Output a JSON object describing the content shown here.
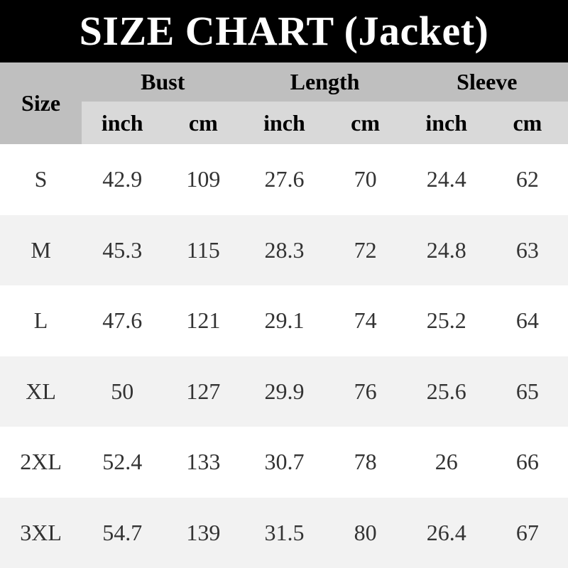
{
  "title": "SIZE CHART (Jacket)",
  "colors": {
    "title_bg": "#000000",
    "title_text": "#ffffff",
    "group_header_bg": "#bfbfbf",
    "unit_header_bg": "#d9d9d9",
    "row_bg": "#ffffff",
    "row_alt_bg": "#f2f2f2",
    "header_text": "#000000",
    "data_text": "#333333"
  },
  "table": {
    "size_header": "Size",
    "group_headers": [
      "Bust",
      "Length",
      "Sleeve"
    ],
    "unit_headers": [
      "inch",
      "cm",
      "inch",
      "cm",
      "inch",
      "cm"
    ],
    "rows": [
      {
        "size": "S",
        "values": [
          "42.9",
          "109",
          "27.6",
          "70",
          "24.4",
          "62"
        ]
      },
      {
        "size": "M",
        "values": [
          "45.3",
          "115",
          "28.3",
          "72",
          "24.8",
          "63"
        ]
      },
      {
        "size": "L",
        "values": [
          "47.6",
          "121",
          "29.1",
          "74",
          "25.2",
          "64"
        ]
      },
      {
        "size": "XL",
        "values": [
          "50",
          "127",
          "29.9",
          "76",
          "25.6",
          "65"
        ]
      },
      {
        "size": "2XL",
        "values": [
          "52.4",
          "133",
          "30.7",
          "78",
          "26",
          "66"
        ]
      },
      {
        "size": "3XL",
        "values": [
          "54.7",
          "139",
          "31.5",
          "80",
          "26.4",
          "67"
        ]
      }
    ]
  },
  "chart_data": {
    "type": "table",
    "title": "SIZE CHART (Jacket)",
    "columns": [
      "Size",
      "Bust inch",
      "Bust cm",
      "Length inch",
      "Length cm",
      "Sleeve inch",
      "Sleeve cm"
    ],
    "rows": [
      [
        "S",
        42.9,
        109,
        27.6,
        70,
        24.4,
        62
      ],
      [
        "M",
        45.3,
        115,
        28.3,
        72,
        24.8,
        63
      ],
      [
        "L",
        47.6,
        121,
        29.1,
        74,
        25.2,
        64
      ],
      [
        "XL",
        50,
        127,
        29.9,
        76,
        25.6,
        65
      ],
      [
        "2XL",
        52.4,
        133,
        30.7,
        78,
        26,
        66
      ],
      [
        "3XL",
        54.7,
        139,
        31.5,
        80,
        26.4,
        67
      ]
    ]
  }
}
